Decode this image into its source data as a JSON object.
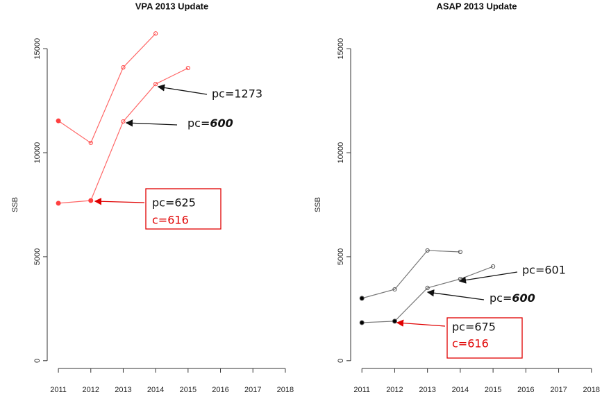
{
  "chart_data": [
    {
      "type": "line",
      "title": "VPA 2013 Update",
      "ylabel": "SSB",
      "xlim": [
        2010.72,
        2018.28
      ],
      "xticks": [
        2011,
        2012,
        2013,
        2014,
        2015,
        2016,
        2017,
        2018
      ],
      "ylim": [
        -640,
        16640
      ],
      "yticks": [
        0,
        5000,
        10000,
        15000
      ],
      "series": [
        {
          "color": "#ff4040",
          "x": [
            2011,
            2012,
            2013,
            2014
          ],
          "values": [
            11530,
            10470,
            14100,
            15730
          ],
          "markers": [
            "filled",
            "open",
            "open",
            "open"
          ]
        },
        {
          "color": "#ff4040",
          "x": [
            2011,
            2012,
            2013,
            2014,
            2015
          ],
          "values": [
            7570,
            7700,
            11500,
            13300,
            14070
          ],
          "markers": [
            "filled",
            "filled",
            "open",
            "open",
            "open"
          ]
        }
      ],
      "annotations": [
        {
          "text": "pc=1273"
        },
        {
          "parts": [
            "pc=",
            "600"
          ]
        },
        {
          "lines": [
            "pc=625",
            "c=616"
          ]
        }
      ]
    },
    {
      "type": "line",
      "title": "ASAP 2013 Update",
      "ylabel": "SSB",
      "xlim": [
        2010.72,
        2018.28
      ],
      "xticks": [
        2011,
        2012,
        2013,
        2014,
        2015,
        2016,
        2017,
        2018
      ],
      "ylim": [
        -640,
        16640
      ],
      "yticks": [
        0,
        5000,
        10000,
        15000
      ],
      "series": [
        {
          "color": "#555555",
          "x": [
            2011,
            2012,
            2013,
            2014
          ],
          "values": [
            3000,
            3430,
            5300,
            5230
          ],
          "markers": [
            "filled",
            "open",
            "open",
            "open"
          ]
        },
        {
          "color": "#555555",
          "x": [
            2011,
            2012,
            2013,
            2014,
            2015
          ],
          "values": [
            1830,
            1900,
            3500,
            3930,
            4530
          ],
          "markers": [
            "filled",
            "filled",
            "open",
            "open",
            "open"
          ]
        }
      ],
      "annotations": [
        {
          "text": "pc=601"
        },
        {
          "parts": [
            "pc=",
            "600"
          ]
        },
        {
          "lines": [
            "pc=675",
            "c=616"
          ]
        }
      ]
    }
  ]
}
